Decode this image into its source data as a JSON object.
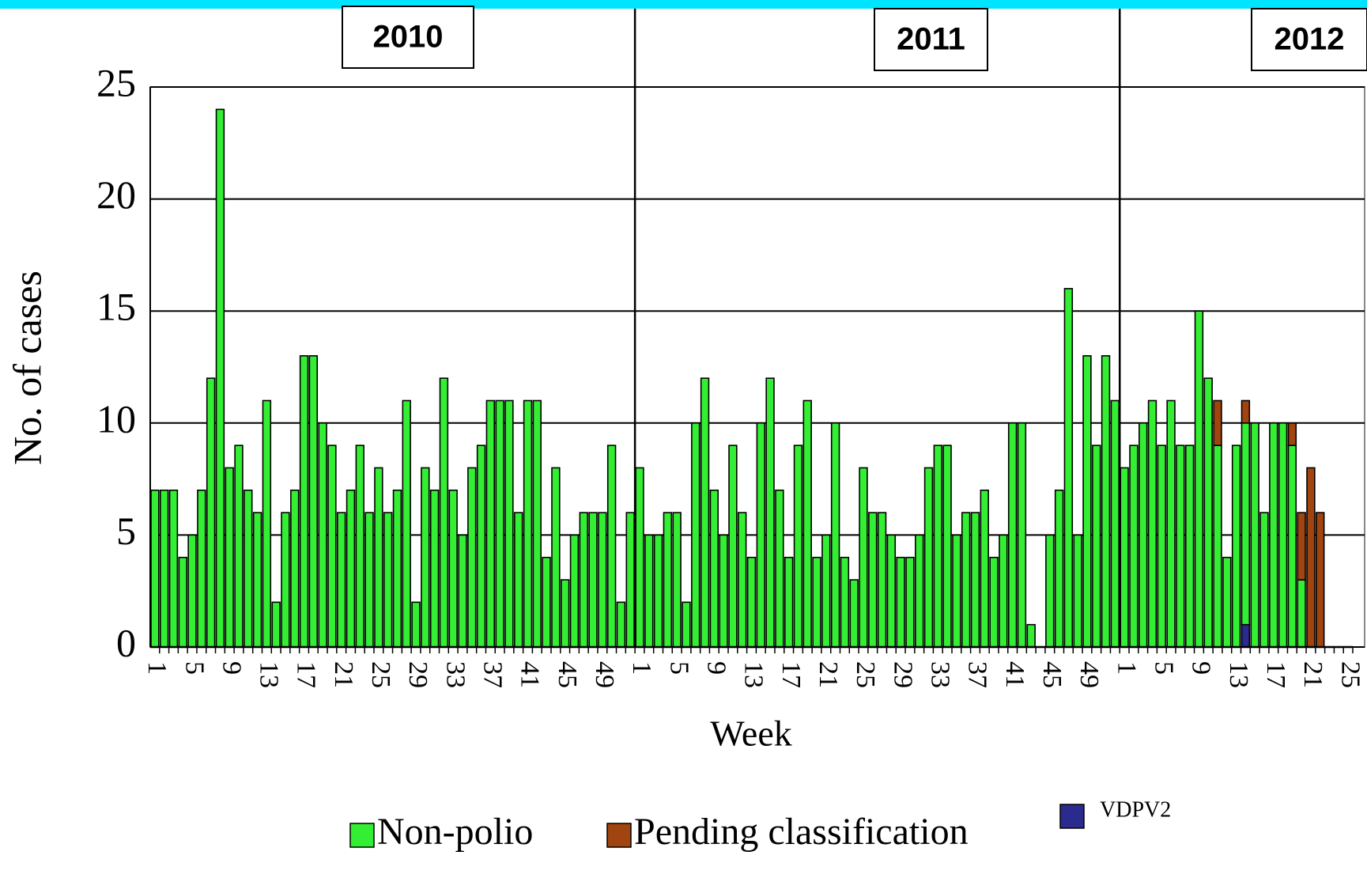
{
  "chart_data": {
    "type": "stacked_bar",
    "ylabel": "No. of cases",
    "xlabel": "Week",
    "year_labels": [
      "2010",
      "2011",
      "2012"
    ],
    "categories": [
      "1",
      null,
      null,
      null,
      "5",
      null,
      null,
      null,
      "9",
      null,
      null,
      null,
      "13",
      null,
      null,
      null,
      "17",
      null,
      null,
      null,
      "21",
      null,
      null,
      null,
      "25",
      null,
      null,
      null,
      "29",
      null,
      null,
      null,
      "33",
      null,
      null,
      null,
      "37",
      null,
      null,
      null,
      "41",
      null,
      null,
      null,
      "45",
      null,
      null,
      null,
      "49",
      null,
      null,
      null,
      "1",
      null,
      null,
      null,
      "5",
      null,
      null,
      null,
      "9",
      null,
      null,
      null,
      "13",
      null,
      null,
      null,
      "17",
      null,
      null,
      null,
      "21",
      null,
      null,
      null,
      "25",
      null,
      null,
      null,
      "29",
      null,
      null,
      null,
      "33",
      null,
      null,
      null,
      "37",
      null,
      null,
      null,
      "41",
      null,
      null,
      null,
      "45",
      null,
      null,
      null,
      "49",
      null,
      null,
      null,
      "1",
      null,
      null,
      null,
      "5",
      null,
      null,
      null,
      "9",
      null,
      null,
      null,
      "13",
      null,
      null,
      null,
      "17",
      null,
      null,
      null,
      "21",
      null,
      null,
      null,
      "25"
    ],
    "series": [
      {
        "name": "Non-polio",
        "color": "#33ee33",
        "values": [
          7,
          7,
          7,
          4,
          5,
          7,
          12,
          24,
          8,
          9,
          7,
          6,
          11,
          2,
          6,
          7,
          13,
          13,
          10,
          9,
          6,
          7,
          9,
          6,
          8,
          6,
          7,
          11,
          2,
          8,
          7,
          12,
          7,
          5,
          8,
          9,
          11,
          11,
          11,
          6,
          11,
          11,
          4,
          8,
          3,
          5,
          6,
          6,
          6,
          9,
          2,
          6,
          8,
          5,
          5,
          6,
          6,
          2,
          10,
          12,
          7,
          5,
          9,
          6,
          4,
          10,
          12,
          7,
          4,
          9,
          11,
          4,
          5,
          10,
          4,
          3,
          8,
          6,
          6,
          5,
          4,
          4,
          5,
          8,
          9,
          9,
          5,
          6,
          6,
          7,
          4,
          5,
          10,
          10,
          1,
          0,
          5,
          7,
          16,
          5,
          13,
          9,
          13,
          11,
          8,
          9,
          10,
          11,
          9,
          11,
          9,
          9,
          15,
          12,
          9,
          4,
          9,
          9,
          10,
          6,
          10,
          10,
          9,
          3,
          0,
          0,
          0,
          0,
          0
        ]
      },
      {
        "name": "Pending classification",
        "color": "#a0450f",
        "values": [
          0,
          0,
          0,
          0,
          0,
          0,
          0,
          0,
          0,
          0,
          0,
          0,
          0,
          0,
          0,
          0,
          0,
          0,
          0,
          0,
          0,
          0,
          0,
          0,
          0,
          0,
          0,
          0,
          0,
          0,
          0,
          0,
          0,
          0,
          0,
          0,
          0,
          0,
          0,
          0,
          0,
          0,
          0,
          0,
          0,
          0,
          0,
          0,
          0,
          0,
          0,
          0,
          0,
          0,
          0,
          0,
          0,
          0,
          0,
          0,
          0,
          0,
          0,
          0,
          0,
          0,
          0,
          0,
          0,
          0,
          0,
          0,
          0,
          0,
          0,
          0,
          0,
          0,
          0,
          0,
          0,
          0,
          0,
          0,
          0,
          0,
          0,
          0,
          0,
          0,
          0,
          0,
          0,
          0,
          0,
          0,
          0,
          0,
          0,
          0,
          0,
          0,
          0,
          0,
          0,
          0,
          0,
          0,
          0,
          0,
          0,
          0,
          0,
          0,
          2,
          0,
          0,
          1,
          0,
          0,
          0,
          0,
          1,
          3,
          8,
          6,
          0,
          0,
          0
        ]
      },
      {
        "name": "VDPV2",
        "color": "#2b2b8f",
        "values": [
          0,
          0,
          0,
          0,
          0,
          0,
          0,
          0,
          0,
          0,
          0,
          0,
          0,
          0,
          0,
          0,
          0,
          0,
          0,
          0,
          0,
          0,
          0,
          0,
          0,
          0,
          0,
          0,
          0,
          0,
          0,
          0,
          0,
          0,
          0,
          0,
          0,
          0,
          0,
          0,
          0,
          0,
          0,
          0,
          0,
          0,
          0,
          0,
          0,
          0,
          0,
          0,
          0,
          0,
          0,
          0,
          0,
          0,
          0,
          0,
          0,
          0,
          0,
          0,
          0,
          0,
          0,
          0,
          0,
          0,
          0,
          0,
          0,
          0,
          0,
          0,
          0,
          0,
          0,
          0,
          0,
          0,
          0,
          0,
          0,
          0,
          0,
          0,
          0,
          0,
          0,
          0,
          0,
          0,
          0,
          0,
          0,
          0,
          0,
          0,
          0,
          0,
          0,
          0,
          0,
          0,
          0,
          0,
          0,
          0,
          0,
          0,
          0,
          0,
          0,
          0,
          0,
          1,
          0,
          0,
          0,
          0,
          0,
          0,
          0,
          0,
          0,
          0,
          0
        ]
      }
    ],
    "ylim": [
      0,
      25
    ],
    "yticks": [
      0,
      5,
      10,
      15,
      20,
      25
    ],
    "grid": true
  }
}
